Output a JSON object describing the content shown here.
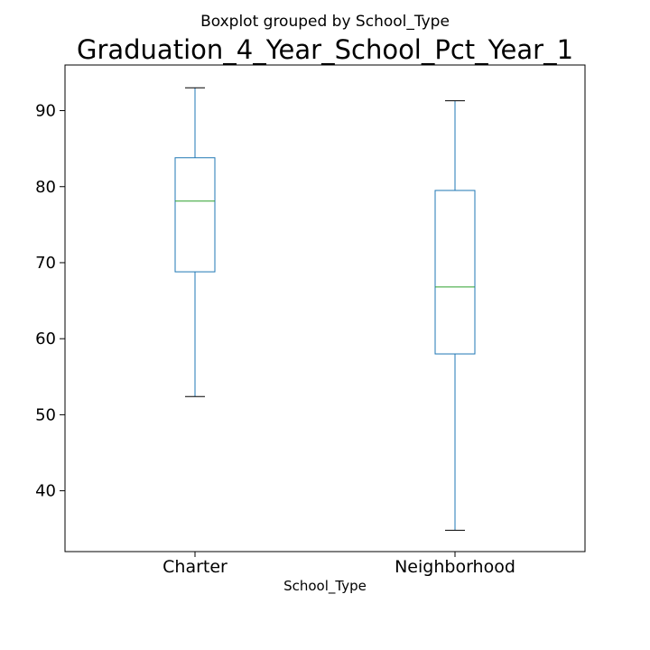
{
  "chart_data": {
    "type": "box",
    "suptitle": "Boxplot grouped by School_Type",
    "title": "Graduation_4_Year_School_Pct_Year_1",
    "xlabel": "School_Type",
    "ylabel": "",
    "ylim": [
      32,
      96
    ],
    "yticks": [
      40,
      50,
      60,
      70,
      80,
      90
    ],
    "grid": false,
    "categories": [
      "Charter",
      "Neighborhood"
    ],
    "boxes": [
      {
        "category": "Charter",
        "whisker_low": 52.4,
        "q1": 68.8,
        "median": 78.1,
        "q3": 83.8,
        "whisker_high": 93.0
      },
      {
        "category": "Neighborhood",
        "whisker_low": 34.8,
        "q1": 58.0,
        "median": 66.8,
        "q3": 79.5,
        "whisker_high": 91.3
      }
    ],
    "colors": {
      "box": "#1f77b4",
      "median": "#2ca02c",
      "axes": "#000000"
    }
  }
}
